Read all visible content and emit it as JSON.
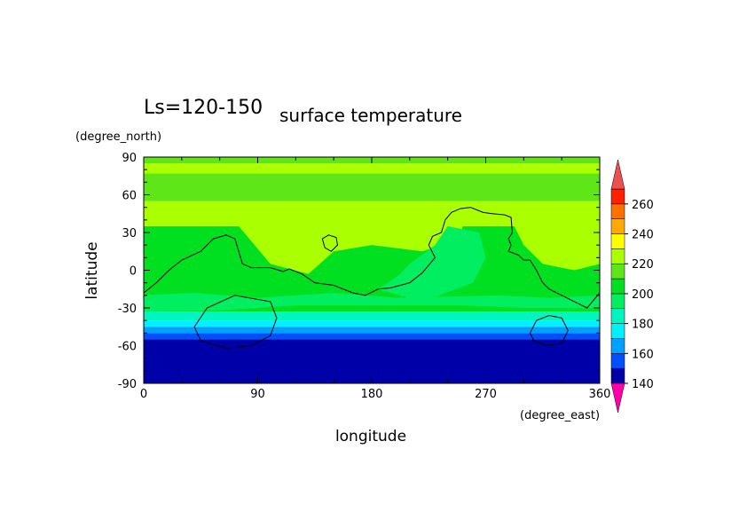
{
  "chart_data": {
    "type": "heatmap",
    "label": "Ls=120-150",
    "title": "surface temperature",
    "xlabel": "longitude",
    "ylabel": "latitude",
    "x_unit": "(degree_east)",
    "y_unit": "(degree_north)",
    "xlim": [
      0,
      360
    ],
    "ylim": [
      -90,
      90
    ],
    "xticks": [
      0,
      90,
      180,
      270,
      360
    ],
    "yticks": [
      -90,
      -60,
      -30,
      0,
      30,
      60,
      90
    ],
    "colorbar": {
      "levels": [
        140,
        150,
        160,
        170,
        180,
        190,
        200,
        210,
        220,
        230,
        240,
        250,
        260,
        270
      ],
      "tick_labels": [
        140,
        160,
        180,
        200,
        220,
        240,
        260
      ],
      "colors": [
        "#0000a8",
        "#0050ff",
        "#00a0ff",
        "#00f0ff",
        "#00f5c0",
        "#00ee60",
        "#00e020",
        "#5fe618",
        "#aaff00",
        "#ffff00",
        "#ffaa00",
        "#ff7000",
        "#ff2000"
      ],
      "low_extend_color": "#ff00aa",
      "high_extend_color": "#ee5050"
    },
    "latitude_bands": [
      {
        "lat_from": -90,
        "lat_to": -55,
        "level_range": [
          140,
          150
        ],
        "color": "#0000a8"
      },
      {
        "lat_from": -55,
        "lat_to": -50,
        "level_range": [
          150,
          160
        ],
        "color": "#0050ff"
      },
      {
        "lat_from": -50,
        "lat_to": -45,
        "level_range": [
          160,
          170
        ],
        "color": "#00a0ff"
      },
      {
        "lat_from": -45,
        "lat_to": -40,
        "level_range": [
          170,
          180
        ],
        "color": "#00f0ff"
      },
      {
        "lat_from": -40,
        "lat_to": -33,
        "level_range": [
          180,
          190
        ],
        "color": "#00f5c0"
      },
      {
        "lat_from": -33,
        "lat_to": 35,
        "level_range": [
          200,
          210
        ],
        "color": "#00e020"
      },
      {
        "lat_from": 35,
        "lat_to": 55,
        "level_range": [
          220,
          230
        ],
        "color": "#aaff00"
      },
      {
        "lat_from": 55,
        "lat_to": 77,
        "level_range": [
          210,
          220
        ],
        "color": "#5fe618"
      },
      {
        "lat_from": 77,
        "lat_to": 85,
        "level_range": [
          220,
          230
        ],
        "color": "#aaff00"
      },
      {
        "lat_from": 85,
        "lat_to": 90,
        "level_range": [
          210,
          220
        ],
        "color": "#5fe618"
      }
    ],
    "regions": [
      {
        "level_range": [
          220,
          230
        ],
        "color": "#aaff00",
        "points": [
          [
            75,
            35
          ],
          [
            100,
            5
          ],
          [
            130,
            -3
          ],
          [
            150,
            15
          ],
          [
            180,
            20
          ],
          [
            220,
            15
          ],
          [
            250,
            25
          ],
          [
            255,
            55
          ],
          [
            180,
            55
          ],
          [
            100,
            55
          ],
          [
            60,
            45
          ]
        ]
      },
      {
        "level_range": [
          220,
          230
        ],
        "color": "#aaff00",
        "points": [
          [
            295,
            55
          ],
          [
            330,
            55
          ],
          [
            360,
            50
          ],
          [
            360,
            5
          ],
          [
            340,
            0
          ],
          [
            315,
            5
          ],
          [
            300,
            20
          ],
          [
            290,
            40
          ]
        ]
      },
      {
        "level_range": [
          190,
          200
        ],
        "color": "#00ee60",
        "points": [
          [
            185,
            -15
          ],
          [
            220,
            -25
          ],
          [
            260,
            -10
          ],
          [
            270,
            10
          ],
          [
            265,
            30
          ],
          [
            240,
            35
          ],
          [
            230,
            20
          ],
          [
            210,
            5
          ],
          [
            200,
            -5
          ]
        ]
      },
      {
        "level_range": [
          190,
          200
        ],
        "color": "#00ee60",
        "points": [
          [
            0,
            -33
          ],
          [
            60,
            -32
          ],
          [
            120,
            -28
          ],
          [
            180,
            -28
          ],
          [
            250,
            -28
          ],
          [
            300,
            -30
          ],
          [
            360,
            -30
          ],
          [
            360,
            -20
          ],
          [
            320,
            -22
          ],
          [
            280,
            -20
          ],
          [
            200,
            -22
          ],
          [
            150,
            -18
          ],
          [
            90,
            -22
          ],
          [
            40,
            -18
          ],
          [
            0,
            -20
          ]
        ]
      }
    ],
    "contours": [
      {
        "points": [
          [
            0,
            -18
          ],
          [
            10,
            -10
          ],
          [
            20,
            0
          ],
          [
            30,
            8
          ],
          [
            45,
            15
          ],
          [
            55,
            25
          ],
          [
            65,
            28
          ],
          [
            72,
            25
          ],
          [
            75,
            15
          ],
          [
            78,
            5
          ],
          [
            85,
            2
          ],
          [
            100,
            2
          ],
          [
            110,
            -1
          ],
          [
            115,
            1
          ],
          [
            125,
            -3
          ],
          [
            135,
            -10
          ],
          [
            150,
            -12
          ],
          [
            165,
            -18
          ],
          [
            175,
            -20
          ],
          [
            185,
            -15
          ],
          [
            195,
            -14
          ],
          [
            210,
            -10
          ],
          [
            220,
            -2
          ],
          [
            225,
            4
          ],
          [
            230,
            10
          ],
          [
            225,
            20
          ],
          [
            228,
            27
          ],
          [
            235,
            30
          ],
          [
            238,
            40
          ],
          [
            243,
            46
          ],
          [
            250,
            49
          ],
          [
            258,
            50
          ],
          [
            268,
            46
          ],
          [
            275,
            45
          ],
          [
            285,
            44
          ],
          [
            290,
            42
          ],
          [
            291,
            30
          ],
          [
            288,
            25
          ],
          [
            290,
            20
          ],
          [
            288,
            15
          ],
          [
            296,
            12
          ],
          [
            300,
            8
          ],
          [
            305,
            8
          ],
          [
            310,
            0
          ],
          [
            315,
            -10
          ],
          [
            320,
            -15
          ],
          [
            330,
            -20
          ],
          [
            340,
            -25
          ],
          [
            350,
            -30
          ],
          [
            360,
            -18
          ]
        ]
      },
      {
        "closed": true,
        "points": [
          [
            40,
            -45
          ],
          [
            50,
            -30
          ],
          [
            72,
            -20
          ],
          [
            100,
            -25
          ],
          [
            105,
            -38
          ],
          [
            100,
            -52
          ],
          [
            85,
            -60
          ],
          [
            65,
            -62
          ],
          [
            45,
            -56
          ]
        ]
      },
      {
        "closed": true,
        "points": [
          [
            305,
            -50
          ],
          [
            310,
            -40
          ],
          [
            320,
            -36
          ],
          [
            330,
            -38
          ],
          [
            335,
            -48
          ],
          [
            330,
            -58
          ],
          [
            318,
            -60
          ],
          [
            308,
            -56
          ]
        ]
      },
      {
        "closed": true,
        "points": [
          [
            141,
            25
          ],
          [
            146,
            28
          ],
          [
            152,
            26
          ],
          [
            153,
            20
          ],
          [
            148,
            15
          ],
          [
            143,
            18
          ]
        ]
      }
    ]
  }
}
